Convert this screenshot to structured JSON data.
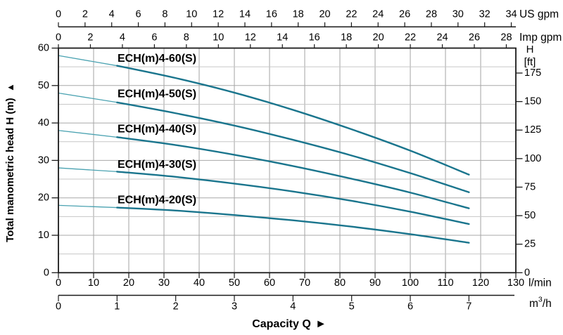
{
  "chart_data": {
    "type": "line",
    "title": "",
    "xlabel": "Capacity Q",
    "xlabel_arrow": "►",
    "ylabel": "Total manometric head H (m)",
    "ylabel_arrow": "▲",
    "grid": "on",
    "legend_position": "inline-labels",
    "x_axes": [
      {
        "id": "us_gpm",
        "unit_label": "US gpm",
        "ticks": [
          0,
          2,
          4,
          6,
          8,
          10,
          12,
          14,
          16,
          18,
          20,
          22,
          24,
          26,
          28,
          30,
          32,
          34
        ],
        "lmin_per_unit": 3.78541
      },
      {
        "id": "imp_gpm",
        "unit_label": "Imp gpm",
        "ticks": [
          0,
          2,
          4,
          6,
          8,
          10,
          12,
          14,
          16,
          18,
          20,
          22,
          24,
          26,
          28
        ],
        "lmin_per_unit": 4.54609
      },
      {
        "id": "lmin",
        "unit_label": "l/min",
        "ticks": [
          0,
          10,
          20,
          30,
          40,
          50,
          60,
          70,
          80,
          90,
          100,
          110,
          120,
          130
        ],
        "lmin_per_unit": 1
      },
      {
        "id": "m3h",
        "unit_label": "m³/h",
        "unit_label_main": "m",
        "unit_label_sup": "3",
        "unit_label_tail": "/h",
        "ticks": [
          0,
          1,
          2,
          3,
          4,
          5,
          6,
          7
        ],
        "lmin_per_unit": 16.6667
      }
    ],
    "y_axes": [
      {
        "id": "head_m",
        "unit_label": "m",
        "ticks": [
          0,
          10,
          20,
          30,
          40,
          50,
          60
        ],
        "m_per_unit": 1
      },
      {
        "id": "head_ft",
        "header_line1": "H",
        "header_line2": "[ft]",
        "ticks": [
          0,
          25,
          50,
          75,
          100,
          125,
          150,
          175
        ],
        "m_per_unit": 0.3048
      }
    ],
    "axis_ranges": {
      "lmin": [
        0,
        130
      ],
      "head_m": [
        0,
        60
      ]
    },
    "x_m3h": [
      0,
      1,
      2,
      3,
      4,
      5,
      6,
      7
    ],
    "series": [
      {
        "name": "ECH(m)4-60(S)",
        "head_m": [
          58.0,
          55.3,
          52.0,
          48.1,
          43.5,
          38.3,
          32.6,
          26.2
        ]
      },
      {
        "name": "ECH(m)4-50(S)",
        "head_m": [
          48.0,
          45.5,
          42.6,
          39.3,
          35.5,
          31.3,
          26.6,
          21.5
        ]
      },
      {
        "name": "ECH(m)4-40(S)",
        "head_m": [
          38.0,
          36.2,
          34.1,
          31.5,
          28.5,
          25.1,
          21.4,
          17.2
        ]
      },
      {
        "name": "ECH(m)4-30(S)",
        "head_m": [
          28.0,
          27.0,
          25.6,
          23.8,
          21.7,
          19.2,
          16.3,
          13.0
        ]
      },
      {
        "name": "ECH(m)4-20(S)",
        "head_m": [
          18.0,
          17.4,
          16.6,
          15.4,
          14.0,
          12.3,
          10.3,
          8.0
        ]
      }
    ],
    "colors": {
      "curve": "#1a758d",
      "curve_thin": "#4aa2b1",
      "grid_vertical": "#a3a3a3",
      "grid_major": "#a8a8a8",
      "grid_minor": "#c7c7c7",
      "frame": "#1a1a1a",
      "text": "#000000"
    }
  }
}
